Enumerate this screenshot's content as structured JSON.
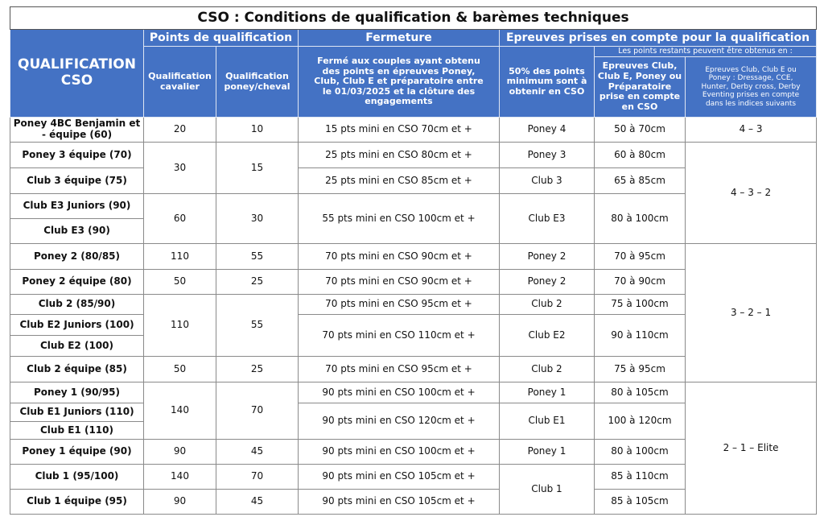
{
  "title": "CSO : Conditions de qualification & barèmes techniques",
  "header": {
    "corner": "QUALIFICATION CSO",
    "points": "Points de qualification",
    "fermeture": "Fermeture",
    "epreuves": "Epreuves prises en compte pour la qualification",
    "cavalier": "Qualification cavalier",
    "poney": "Qualification poney/cheval",
    "ferme": "Fermé aux couples ayant obtenu des points en épreuves Poney, Club, Club E et préparatoire entre le 01/03/2025 et la clôture des engagements",
    "minimum": "50% des points minimum sont à obtenir en CSO",
    "restants": "Les points restants peuvent être obtenus en :",
    "club": "Epreuves Club, Club E, Poney ou Préparatoire prise en compte en CSO",
    "autres": "Epreuves Club, Club E ou Poney : Dressage, CCE, Hunter, Derby cross, Derby Eventing prises en compte dans les indices suivants"
  },
  "table": {
    "rows": [
      [
        "Poney 4BC Benjamin et - équipe (60)",
        "20",
        "10",
        "15 pts mini en CSO 70cm et +",
        "Poney 4",
        "50 à 70cm",
        "4 – 3"
      ],
      [
        "Poney 3 équipe (70)",
        "30",
        "15",
        "25 pts mini en CSO 80cm et +",
        "Poney 3",
        "60 à 80cm",
        "4 – 3 – 2"
      ],
      [
        "Club 3 équipe (75)",
        "25 pts mini en CSO 85cm et +",
        "Club 3",
        "65 à 85cm"
      ],
      [
        "Club E3 Juniors (90)",
        "60",
        "30",
        "55 pts mini en CSO 100cm et +",
        "Club E3",
        "80 à 100cm"
      ],
      [
        "Club E3 (90)"
      ],
      [
        "Poney 2 (80/85)",
        "110",
        "55",
        "70 pts mini en CSO 90cm et +",
        "Poney 2",
        "70 à 95cm",
        "3 – 2 – 1"
      ],
      [
        "Poney 2 équipe (80)",
        "50",
        "25",
        "70 pts mini en CSO 90cm et +",
        "Poney 2",
        "70 à 90cm"
      ],
      [
        "Club 2 (85/90)",
        "110",
        "55",
        "70 pts mini en CSO 95cm et +",
        "Club 2",
        "75 à 100cm"
      ],
      [
        "Club E2 Juniors (100)",
        "70 pts mini en CSO 110cm et +",
        "Club E2",
        "90 à 110cm"
      ],
      [
        "Club E2 (100)"
      ],
      [
        "Club 2 équipe (85)",
        "50",
        "25",
        "70 pts mini en CSO 95cm et +",
        "Club 2",
        "75 à 95cm"
      ],
      [
        "Poney 1 (90/95)",
        "140",
        "70",
        "90 pts mini en CSO 100cm et +",
        "Poney 1",
        "80 à 105cm",
        "2 – 1 – Elite"
      ],
      [
        "Club E1 Juniors (110)",
        "90 pts mini en CSO 120cm et +",
        "Club E1",
        "100 à 120cm"
      ],
      [
        "Club E1 (110)"
      ],
      [
        "Poney 1 équipe (90)",
        "90",
        "45",
        "90 pts mini en CSO 100cm et +",
        "Poney 1",
        "80 à 100cm"
      ],
      [
        "Club 1 (95/100)",
        "140",
        "70",
        "90 pts mini en CSO 105cm et +",
        "Club 1",
        "85 à 110cm"
      ],
      [
        "Club 1 équipe (95)",
        "90",
        "45",
        "90 pts mini en CSO 105cm et +",
        "85 à 105cm"
      ]
    ]
  }
}
